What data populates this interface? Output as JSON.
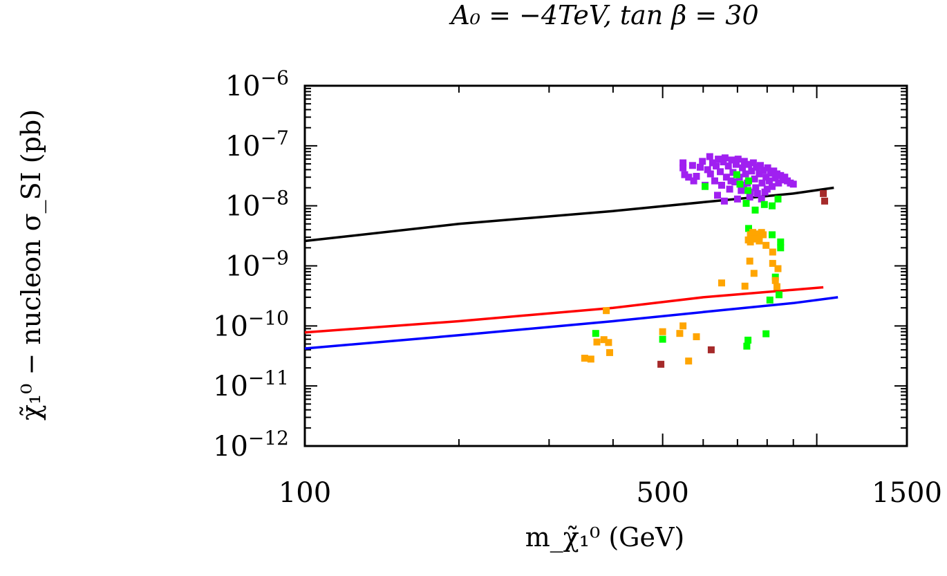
{
  "chart_data": {
    "type": "scatter",
    "title": "A₀ = −4TeV, tan β = 30",
    "xlabel": "m_χ̃₁⁰ (GeV)",
    "ylabel": "χ̃₁⁰ − nucleon σ_SI (pb)",
    "xscale": "log",
    "yscale": "log",
    "xlim": [
      100,
      1500
    ],
    "ylim": [
      1e-12,
      1e-06
    ],
    "grid": false,
    "x_tick_labels": [
      {
        "value": 100,
        "label": "100"
      },
      {
        "value": 500,
        "label": "500"
      },
      {
        "value": 1500,
        "label": "1500"
      }
    ],
    "y_tick_labels": [
      {
        "value": 1e-06,
        "label": "10",
        "exp": "−6"
      },
      {
        "value": 1e-07,
        "label": "10",
        "exp": "−7"
      },
      {
        "value": 1e-08,
        "label": "10",
        "exp": "−8"
      },
      {
        "value": 1e-09,
        "label": "10",
        "exp": "−9"
      },
      {
        "value": 1e-10,
        "label": "10",
        "exp": "−10"
      },
      {
        "value": 1e-11,
        "label": "10",
        "exp": "−11"
      },
      {
        "value": 1e-12,
        "label": "10",
        "exp": "−12"
      }
    ],
    "lines": [
      {
        "color": "#000000",
        "points": [
          [
            100,
            2.6e-09
          ],
          [
            200,
            5e-09
          ],
          [
            400,
            8.2e-09
          ],
          [
            600,
            1.15e-08
          ],
          [
            900,
            1.6e-08
          ],
          [
            1080,
            2e-08
          ]
        ]
      },
      {
        "color": "#ff0000",
        "points": [
          [
            100,
            7.8e-11
          ],
          [
            200,
            1.2e-10
          ],
          [
            400,
            2e-10
          ],
          [
            600,
            3e-10
          ],
          [
            900,
            4e-10
          ],
          [
            1030,
            4.4e-10
          ]
        ]
      },
      {
        "color": "#0000ff",
        "points": [
          [
            100,
            4.2e-11
          ],
          [
            200,
            7e-11
          ],
          [
            400,
            1.2e-10
          ],
          [
            600,
            1.7e-10
          ],
          [
            900,
            2.4e-10
          ],
          [
            1100,
            3e-10
          ]
        ]
      }
    ],
    "series": [
      {
        "color": "#a020f0",
        "points": [
          [
            548,
            5.2e-08
          ],
          [
            548,
            4.3e-08
          ],
          [
            552,
            3.3e-08
          ],
          [
            562,
            3e-08
          ],
          [
            572,
            4.7e-08
          ],
          [
            575,
            2.6e-08
          ],
          [
            582,
            3.1e-08
          ],
          [
            592,
            4.4e-08
          ],
          [
            598,
            5.5e-08
          ],
          [
            605,
            2.2e-08
          ],
          [
            612,
            4e-08
          ],
          [
            618,
            6.6e-08
          ],
          [
            620,
            3.4e-08
          ],
          [
            626,
            5.2e-08
          ],
          [
            632,
            2.6e-08
          ],
          [
            636,
            4.6e-08
          ],
          [
            642,
            6e-08
          ],
          [
            648,
            3.7e-08
          ],
          [
            652,
            2.2e-08
          ],
          [
            657,
            5.4e-08
          ],
          [
            662,
            6.3e-08
          ],
          [
            666,
            3e-08
          ],
          [
            672,
            4.6e-08
          ],
          [
            676,
            1.9e-08
          ],
          [
            682,
            5.8e-08
          ],
          [
            686,
            3.6e-08
          ],
          [
            692,
            2.5e-08
          ],
          [
            696,
            4.9e-08
          ],
          [
            702,
            6e-08
          ],
          [
            706,
            3e-08
          ],
          [
            712,
            1.8e-08
          ],
          [
            716,
            4.3e-08
          ],
          [
            722,
            5.5e-08
          ],
          [
            726,
            3.4e-08
          ],
          [
            732,
            2.4e-08
          ],
          [
            736,
            4.9e-08
          ],
          [
            742,
            1.7e-08
          ],
          [
            746,
            3.8e-08
          ],
          [
            752,
            5.2e-08
          ],
          [
            756,
            2.8e-08
          ],
          [
            762,
            4.4e-08
          ],
          [
            766,
            1.6e-08
          ],
          [
            772,
            3.4e-08
          ],
          [
            776,
            4.7e-08
          ],
          [
            782,
            2.4e-08
          ],
          [
            786,
            3.9e-08
          ],
          [
            792,
            1.7e-08
          ],
          [
            796,
            3e-08
          ],
          [
            802,
            4.3e-08
          ],
          [
            808,
            2.6e-08
          ],
          [
            812,
            3.5e-08
          ],
          [
            818,
            2.1e-08
          ],
          [
            824,
            3.8e-08
          ],
          [
            830,
            2.9e-08
          ],
          [
            836,
            3.4e-08
          ],
          [
            842,
            2.4e-08
          ],
          [
            850,
            3.2e-08
          ],
          [
            858,
            2.7e-08
          ],
          [
            866,
            3e-08
          ],
          [
            876,
            2.6e-08
          ],
          [
            888,
            2.4e-08
          ],
          [
            900,
            2.3e-08
          ],
          [
            640,
            1.5e-08
          ],
          [
            660,
            1.2e-08
          ],
          [
            680,
            2.6e-08
          ],
          [
            700,
            1.3e-08
          ],
          [
            720,
            2.2e-08
          ],
          [
            740,
            1.4e-08
          ],
          [
            760,
            2e-08
          ],
          [
            780,
            1.3e-08
          ],
          [
            800,
            1.9e-08
          ]
        ]
      },
      {
        "color": "#00ff00",
        "points": [
          [
            698,
            3.3e-08
          ],
          [
            708,
            2.3e-08
          ],
          [
            736,
            2.6e-08
          ],
          [
            605,
            2.1e-08
          ],
          [
            734,
            1.8e-08
          ],
          [
            728,
            1.1e-08
          ],
          [
            758,
            8.5e-09
          ],
          [
            790,
            1.05e-08
          ],
          [
            818,
            1e-08
          ],
          [
            840,
            1.3e-08
          ],
          [
            736,
            4.2e-09
          ],
          [
            818,
            3.3e-09
          ],
          [
            850,
            2.5e-09
          ],
          [
            850,
            2e-09
          ],
          [
            830,
            6.5e-10
          ],
          [
            844,
            3.3e-10
          ],
          [
            810,
            2.7e-10
          ],
          [
            370,
            7.5e-11
          ],
          [
            500,
            6e-11
          ],
          [
            734,
            5.8e-11
          ],
          [
            730,
            4.6e-11
          ],
          [
            796,
            7.4e-11
          ]
        ]
      },
      {
        "color": "#ffa500",
        "points": [
          [
            735,
            2.7e-09
          ],
          [
            742,
            3.3e-09
          ],
          [
            750,
            3.6e-09
          ],
          [
            758,
            3.2e-09
          ],
          [
            766,
            3.4e-09
          ],
          [
            772,
            3.1e-09
          ],
          [
            780,
            3.6e-09
          ],
          [
            786,
            3.3e-09
          ],
          [
            742,
            2.5e-09
          ],
          [
            756,
            2.8e-09
          ],
          [
            772,
            2.6e-09
          ],
          [
            796,
            2.2e-09
          ],
          [
            820,
            1.7e-09
          ],
          [
            740,
            1.2e-09
          ],
          [
            754,
            7.5e-10
          ],
          [
            820,
            1.1e-09
          ],
          [
            840,
            9e-10
          ],
          [
            652,
            5.2e-10
          ],
          [
            724,
            4.6e-10
          ],
          [
            830,
            5.7e-10
          ],
          [
            836,
            4.5e-10
          ],
          [
            388,
            1.8e-10
          ],
          [
            352,
            2.9e-11
          ],
          [
            362,
            2.8e-11
          ],
          [
            372,
            5.4e-11
          ],
          [
            384,
            5.9e-11
          ],
          [
            392,
            5.3e-11
          ],
          [
            394,
            3.6e-11
          ],
          [
            500,
            8e-11
          ],
          [
            540,
            7.5e-11
          ],
          [
            548,
            1e-10
          ],
          [
            582,
            6.6e-11
          ],
          [
            562,
            2.6e-11
          ]
        ]
      },
      {
        "color": "#a52a2a",
        "points": [
          [
            1030,
            1.6e-08
          ],
          [
            1036,
            1.2e-08
          ],
          [
            496,
            2.3e-11
          ],
          [
            622,
            4e-11
          ]
        ]
      }
    ]
  }
}
